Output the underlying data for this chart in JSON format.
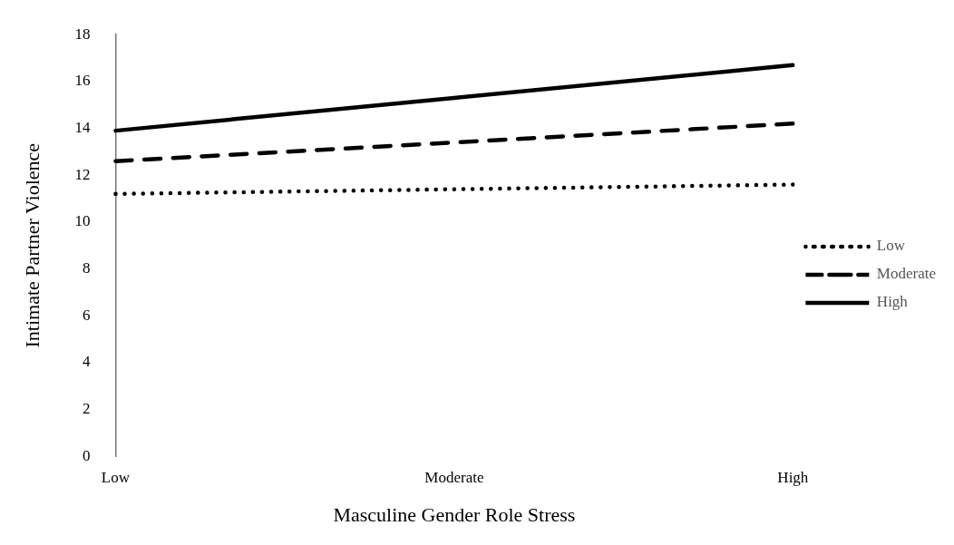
{
  "chart_data": {
    "type": "line",
    "xlabel": "Masculine Gender Role Stress",
    "ylabel": "Intimate Partner Violence",
    "categories": [
      "Low",
      "Moderate",
      "High"
    ],
    "series": [
      {
        "name": "Low",
        "color": "#000000",
        "line_style": "dotted",
        "values": [
          11.2,
          11.4,
          11.6
        ]
      },
      {
        "name": "Moderate",
        "color": "#000000",
        "line_style": "dashed",
        "values": [
          12.6,
          13.4,
          14.2
        ]
      },
      {
        "name": "High",
        "color": "#000000",
        "line_style": "solid",
        "values": [
          13.9,
          15.3,
          16.7
        ]
      }
    ],
    "ylim": [
      0,
      18
    ],
    "yticks": [
      0,
      2,
      4,
      6,
      8,
      10,
      12,
      14,
      16,
      18
    ],
    "grid": false,
    "legend": "right",
    "marker": "none"
  }
}
